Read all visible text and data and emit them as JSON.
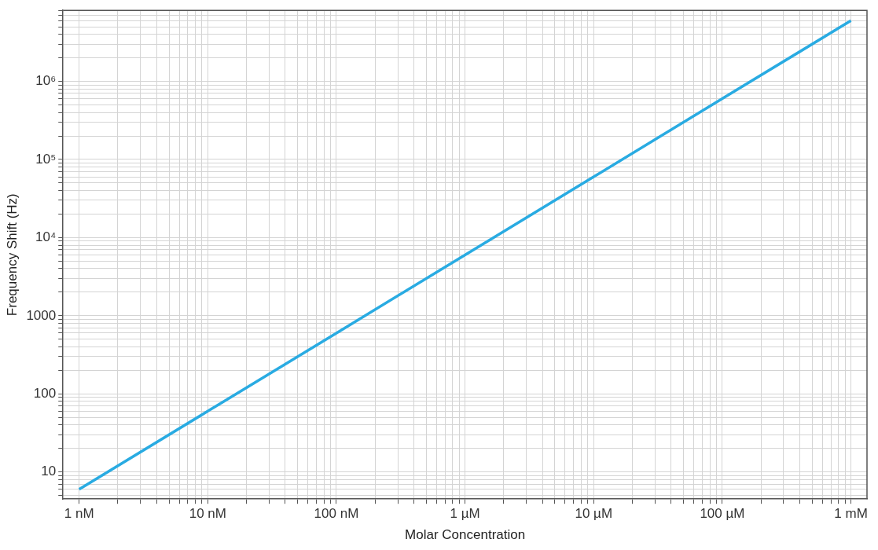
{
  "chart_data": {
    "type": "line",
    "xlabel": "Molar Concentration",
    "ylabel": "Frequency Shift (Hz)",
    "log": "y",
    "grid": true,
    "legend": false,
    "marker": "none",
    "line_style": "solid",
    "categories": [
      "1 nM",
      "10 nM",
      "100 nM",
      "1 µM",
      "10 µM",
      "100 µM",
      "1 mM"
    ],
    "series": [
      {
        "color": "#29abe2",
        "values": [
          6,
          60,
          600,
          6000,
          60000,
          600000,
          6000000
        ]
      }
    ],
    "ylim": [
      4.5,
      8100000
    ],
    "yticks": [
      {
        "value": 5,
        "label": null
      },
      {
        "value": 6,
        "label": null
      },
      {
        "value": 7,
        "label": null
      },
      {
        "value": 8,
        "label": null
      },
      {
        "value": 9,
        "label": null
      },
      {
        "value": 10,
        "label": "10"
      },
      {
        "value": 20,
        "label": null
      },
      {
        "value": 30,
        "label": null
      },
      {
        "value": 40,
        "label": null
      },
      {
        "value": 50,
        "label": null
      },
      {
        "value": 60,
        "label": null
      },
      {
        "value": 70,
        "label": null
      },
      {
        "value": 80,
        "label": null
      },
      {
        "value": 90,
        "label": null
      },
      {
        "value": 100,
        "label": "100"
      },
      {
        "value": 200,
        "label": null
      },
      {
        "value": 300,
        "label": null
      },
      {
        "value": 400,
        "label": null
      },
      {
        "value": 500,
        "label": null
      },
      {
        "value": 600,
        "label": null
      },
      {
        "value": 700,
        "label": null
      },
      {
        "value": 800,
        "label": null
      },
      {
        "value": 900,
        "label": null
      },
      {
        "value": 1000,
        "label": "1000"
      },
      {
        "value": 2000,
        "label": null
      },
      {
        "value": 3000,
        "label": null
      },
      {
        "value": 4000,
        "label": null
      },
      {
        "value": 5000,
        "label": null
      },
      {
        "value": 6000,
        "label": null
      },
      {
        "value": 7000,
        "label": null
      },
      {
        "value": 8000,
        "label": null
      },
      {
        "value": 9000,
        "label": null
      },
      {
        "value": 10000,
        "label": "10⁴"
      },
      {
        "value": 20000,
        "label": null
      },
      {
        "value": 30000,
        "label": null
      },
      {
        "value": 40000,
        "label": null
      },
      {
        "value": 50000,
        "label": null
      },
      {
        "value": 60000,
        "label": null
      },
      {
        "value": 70000,
        "label": null
      },
      {
        "value": 80000,
        "label": null
      },
      {
        "value": 90000,
        "label": null
      },
      {
        "value": 100000,
        "label": "10⁵"
      },
      {
        "value": 200000,
        "label": null
      },
      {
        "value": 300000,
        "label": null
      },
      {
        "value": 400000,
        "label": null
      },
      {
        "value": 500000,
        "label": null
      },
      {
        "value": 600000,
        "label": null
      },
      {
        "value": 700000,
        "label": null
      },
      {
        "value": 800000,
        "label": null
      },
      {
        "value": 900000,
        "label": null
      },
      {
        "value": 1000000,
        "label": "10⁶"
      },
      {
        "value": 2000000,
        "label": null
      },
      {
        "value": 3000000,
        "label": null
      },
      {
        "value": 4000000,
        "label": null
      },
      {
        "value": 5000000,
        "label": null
      },
      {
        "value": 6000000,
        "label": null
      },
      {
        "value": 7000000,
        "label": null
      },
      {
        "value": 8000000,
        "label": null
      }
    ]
  }
}
